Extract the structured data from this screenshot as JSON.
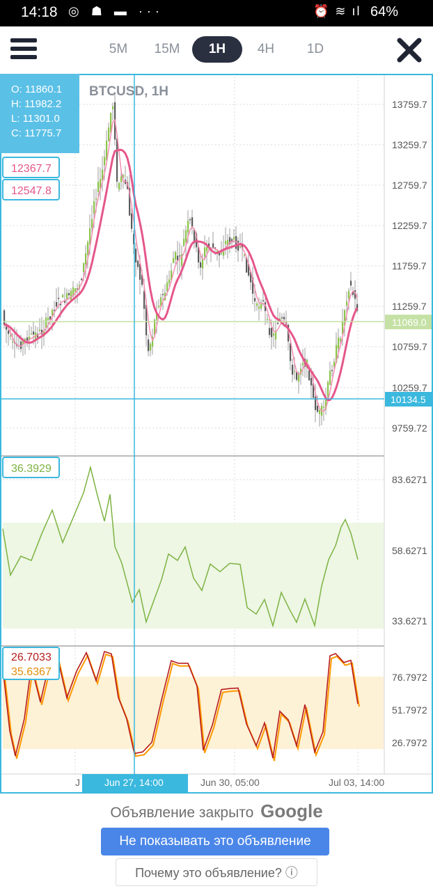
{
  "status_bar": {
    "time": "14:18",
    "battery": "64%"
  },
  "toolbar": {
    "timeframes": [
      {
        "label": "5M",
        "active": false
      },
      {
        "label": "15M",
        "active": false
      },
      {
        "label": "1H",
        "active": true
      },
      {
        "label": "4H",
        "active": false
      },
      {
        "label": "1D",
        "active": false
      }
    ]
  },
  "chart": {
    "symbol_title": "BTCUSD, 1H",
    "ohlc": {
      "o": "O:  11860.1",
      "h": "H:  11982.2",
      "l": "L:  11301.0",
      "c": "C:  11775.7"
    },
    "ma_values": [
      "12367.7",
      "12547.8"
    ],
    "price_ticks": [
      "13759.7",
      "13259.7",
      "12759.7",
      "12259.7",
      "11759.7",
      "11259.7",
      "10759.7",
      "10259.7",
      "9759.72"
    ],
    "last_price": "11069.0",
    "crosshair_price": "10134.5",
    "rsi_value": "36.3929",
    "rsi_ticks": [
      "83.6271",
      "58.6271",
      "33.6271"
    ],
    "stoch_values": [
      "26.7033",
      "35.6367"
    ],
    "stoch_ticks": [
      "76.7972",
      "51.7972",
      "26.7972"
    ],
    "x_ticks": [
      "Jun 30, 05:00",
      "Jul 03, 14:00"
    ],
    "x_partial": "J",
    "crosshair_date": "Jun 27, 14:00",
    "colors": {
      "accent": "#3ab8de",
      "bull": "#8bc34a",
      "bear": "#555555",
      "ma_fast": "#f48fb1",
      "ma_slow": "#e5568a",
      "rsi": "#7cb342",
      "stoch_k": "#b71c1c",
      "stoch_d": "#ff9800"
    }
  },
  "ad": {
    "closed_text": "Объявление закрыто",
    "brand": "Google",
    "hide_button": "Не показывать это объявление",
    "why_button": "Почему это объявление? ⓘ"
  }
}
